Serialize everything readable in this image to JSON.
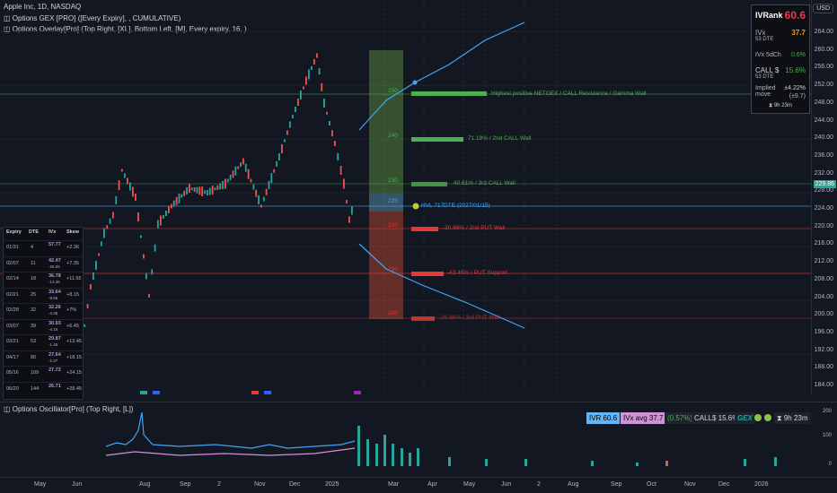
{
  "header": {
    "line1": "Apple Inc, 1D, NASDAQ",
    "line2": "Options GEX [PRO] ([Every Expiry], , CUMULATIVE)",
    "line3": "Options Overlay[Pro] (Top Right, [XL], Bottom Left, [M], Every expiry, 16, )"
  },
  "currency": "USD",
  "price_axis": [
    "264.00",
    "260.00",
    "256.00",
    "252.00",
    "248.00",
    "244.00",
    "240.00",
    "236.00",
    "232.00",
    "228.00",
    "224.00",
    "220.00",
    "216.00",
    "212.00",
    "208.00",
    "204.00",
    "200.00",
    "196.00",
    "192.00",
    "188.00",
    "184.00"
  ],
  "last_price": "229.86",
  "time_axis": [
    "May",
    "Jun",
    "Aug",
    "Sep",
    "2",
    "Nov",
    "Dec",
    "2025",
    "Mar",
    "Apr",
    "May",
    "Jun",
    "2",
    "Aug",
    "Sep",
    "Oct",
    "Nov",
    "Dec",
    "2026"
  ],
  "ivr_panel": {
    "title": "IVRank",
    "value": "60.6",
    "ivx_label": "IVx",
    "ivx_sub": "53 DTE",
    "ivx_value": "37.7",
    "ivx5d_label": "IVx 5dCh",
    "ivx5d_value": "0.6%",
    "call_label": "CALL $",
    "call_sub": "53 DTE",
    "call_value": "15.6%",
    "move_label": "Implied move",
    "move_value": "±4.22%",
    "move_sub": "(±9.7)",
    "timer": "9h 23m"
  },
  "levels": [
    {
      "price": "250",
      "label": "Highest positive NETGEX / CALL Resistance / Gamma Wall",
      "color": "#4caf50"
    },
    {
      "price": "240",
      "label": "71.19% / 2nd CALL Wall",
      "color": "#4caf50"
    },
    {
      "price": "230",
      "label": "40.61% / 3rd CALL Wall",
      "color": "#4caf50"
    },
    {
      "price": "225",
      "label": "HVL 717DTE (2027/01/15)",
      "color": "#42a5f5"
    },
    {
      "price": "220",
      "label": "-30.86% / 2nd PUT Wall",
      "color": "#e53935"
    },
    {
      "price": "210",
      "label": "-43.45% / PUT Support",
      "color": "#e53935"
    },
    {
      "price": "200",
      "label": "-26.96% / 3rd PUT Wall",
      "color": "#e53935"
    }
  ],
  "expiry_table": {
    "headers": [
      "Expiry",
      "DTE",
      "IVx",
      "Skew"
    ],
    "rows": [
      {
        "expiry": "01/31",
        "dte": "4",
        "ivx": "57.77",
        "chg": "",
        "skew": "+2.36"
      },
      {
        "expiry": "02/07",
        "dte": "11",
        "ivx": "42.47",
        "chg": "-25.55",
        "skew": "+7.35"
      },
      {
        "expiry": "02/14",
        "dte": "18",
        "ivx": "36.78",
        "chg": "-13.45",
        "skew": "+11.65"
      },
      {
        "expiry": "02/21",
        "dte": "25",
        "ivx": "33.64",
        "chg": "-8.55",
        "skew": "+8.15"
      },
      {
        "expiry": "02/28",
        "dte": "32",
        "ivx": "32.26",
        "chg": "-4.35",
        "skew": "+7%"
      },
      {
        "expiry": "03/07",
        "dte": "39",
        "ivx": "30.93",
        "chg": "-4.15",
        "skew": "+6.45"
      },
      {
        "expiry": "03/21",
        "dte": "53",
        "ivx": "29.87",
        "chg": "-1.45",
        "skew": "+13.45"
      },
      {
        "expiry": "04/17",
        "dte": "80",
        "ivx": "27.64",
        "chg": "-2.27",
        "skew": "+18.15"
      },
      {
        "expiry": "05/16",
        "dte": "109",
        "ivx": "27.72",
        "chg": "",
        "skew": "+24.15"
      },
      {
        "expiry": "06/20",
        "dte": "144",
        "ivx": "26.71",
        "chg": "",
        "skew": "+28.45"
      }
    ]
  },
  "oscillator": {
    "title": "Options Oscillator[Pro] (Top Right, [L])",
    "axis": [
      "200",
      "100",
      "0"
    ],
    "ivr": "IVR 60.6",
    "ivx_avg": "IVx avg 37.7",
    "chg": "(0.57%)",
    "calls": "CALL$ 15.6%",
    "gex": "GEX",
    "timer": "9h 23m"
  },
  "colors": {
    "bg": "#131722",
    "green": "#26a69a",
    "red": "#ef5350",
    "call": "#4caf50",
    "put": "#e53935",
    "blue": "#42a5f5"
  }
}
